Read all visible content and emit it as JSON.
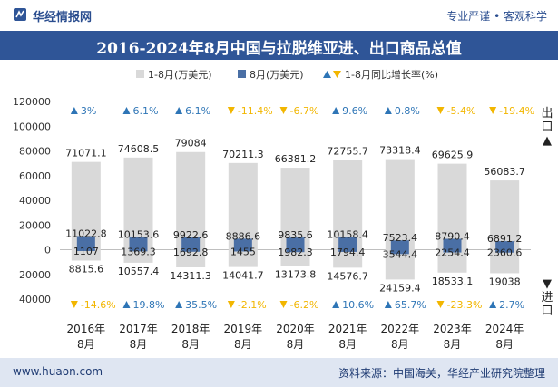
{
  "header": {
    "brand": "华经情报网",
    "slogan": "专业严谨 • 客观科学",
    "title": "2016-2024年8月中国与拉脱维亚进、出口商品总值"
  },
  "side_labels": {
    "export": "出口",
    "import": "进口"
  },
  "footer": {
    "url": "www.huaon.com",
    "source": "资料来源：中国海关，华经产业研究院整理"
  },
  "colors": {
    "cumulative_bar": "#d9d9d9",
    "month_bar": "#4a6fa5",
    "growth_up": "#2e75b6",
    "growth_down": "#f2b600",
    "title_bg": "#2f5597"
  },
  "chart_data": {
    "type": "bar",
    "legend": [
      "1-8月(万美元)",
      "8月(万美元)",
      "1-8月同比增长率(%)"
    ],
    "legend_placement": "top",
    "categories": [
      "2016年\n8月",
      "2017年\n8月",
      "2018年\n8月",
      "2019年\n8月",
      "2020年\n8月",
      "2021年\n8月",
      "2022年\n8月",
      "2023年\n8月",
      "2024年\n8月"
    ],
    "ylim": [
      -40000,
      120000
    ],
    "yticks": [
      -40000,
      -20000,
      0,
      20000,
      40000,
      60000,
      80000,
      100000,
      120000
    ],
    "ytick_labels": [
      "40000",
      "20000",
      "0",
      "20000",
      "40000",
      "60000",
      "80000",
      "100000",
      "120000"
    ],
    "export": {
      "ytd_values": [
        71071.1,
        74608.5,
        79084,
        70211.3,
        66381.2,
        72755.7,
        73318.4,
        69625.9,
        56083.7
      ],
      "ytd_labels": [
        "71071.1",
        "74608.5",
        "79084",
        "70211.3",
        "66381.2",
        "72755.7",
        "73318.4",
        "69625.9",
        "56083.7"
      ],
      "month_values": [
        11022.8,
        10153.6,
        9922.6,
        8886.6,
        9835.6,
        10158.4,
        7523.4,
        8790.4,
        6891.2
      ],
      "month_labels": [
        "11022.8",
        "10153.6",
        "9922.6",
        "8886.6",
        "9835.6",
        "10158.4",
        "7523.4",
        "8790.4",
        "6891.2"
      ],
      "growth": [
        3,
        6.1,
        6.1,
        -11.4,
        -6.7,
        9.6,
        0.8,
        -5.4,
        -19.4
      ],
      "growth_labels": [
        "3%",
        "6.1%",
        "6.1%",
        "-11.4%",
        "-6.7%",
        "9.6%",
        "0.8%",
        "-5.4%",
        "-19.4%"
      ]
    },
    "import": {
      "ytd_values": [
        8815.6,
        10557.4,
        14311.3,
        14041.7,
        13173.8,
        14576.7,
        24159.4,
        18533.1,
        19038
      ],
      "ytd_labels": [
        "8815.6",
        "10557.4",
        "14311.3",
        "14041.7",
        "13173.8",
        "14576.7",
        "24159.4",
        "18533.1",
        "19038"
      ],
      "month_values": [
        1107,
        1369.3,
        1692.8,
        1455,
        1982.3,
        1794.4,
        3544.4,
        2254.4,
        2360.6
      ],
      "month_labels": [
        "1107",
        "1369.3",
        "1692.8",
        "1455",
        "1982.3",
        "1794.4",
        "3544.4",
        "2254.4",
        "2360.6"
      ],
      "growth": [
        -14.6,
        19.8,
        35.5,
        -2.1,
        -6.2,
        10.6,
        65.7,
        -23.3,
        2.7
      ],
      "growth_labels": [
        "-14.6%",
        "19.8%",
        "35.5%",
        "-2.1%",
        "-6.2%",
        "10.6%",
        "65.7%",
        "-23.3%",
        "2.7%"
      ]
    }
  }
}
